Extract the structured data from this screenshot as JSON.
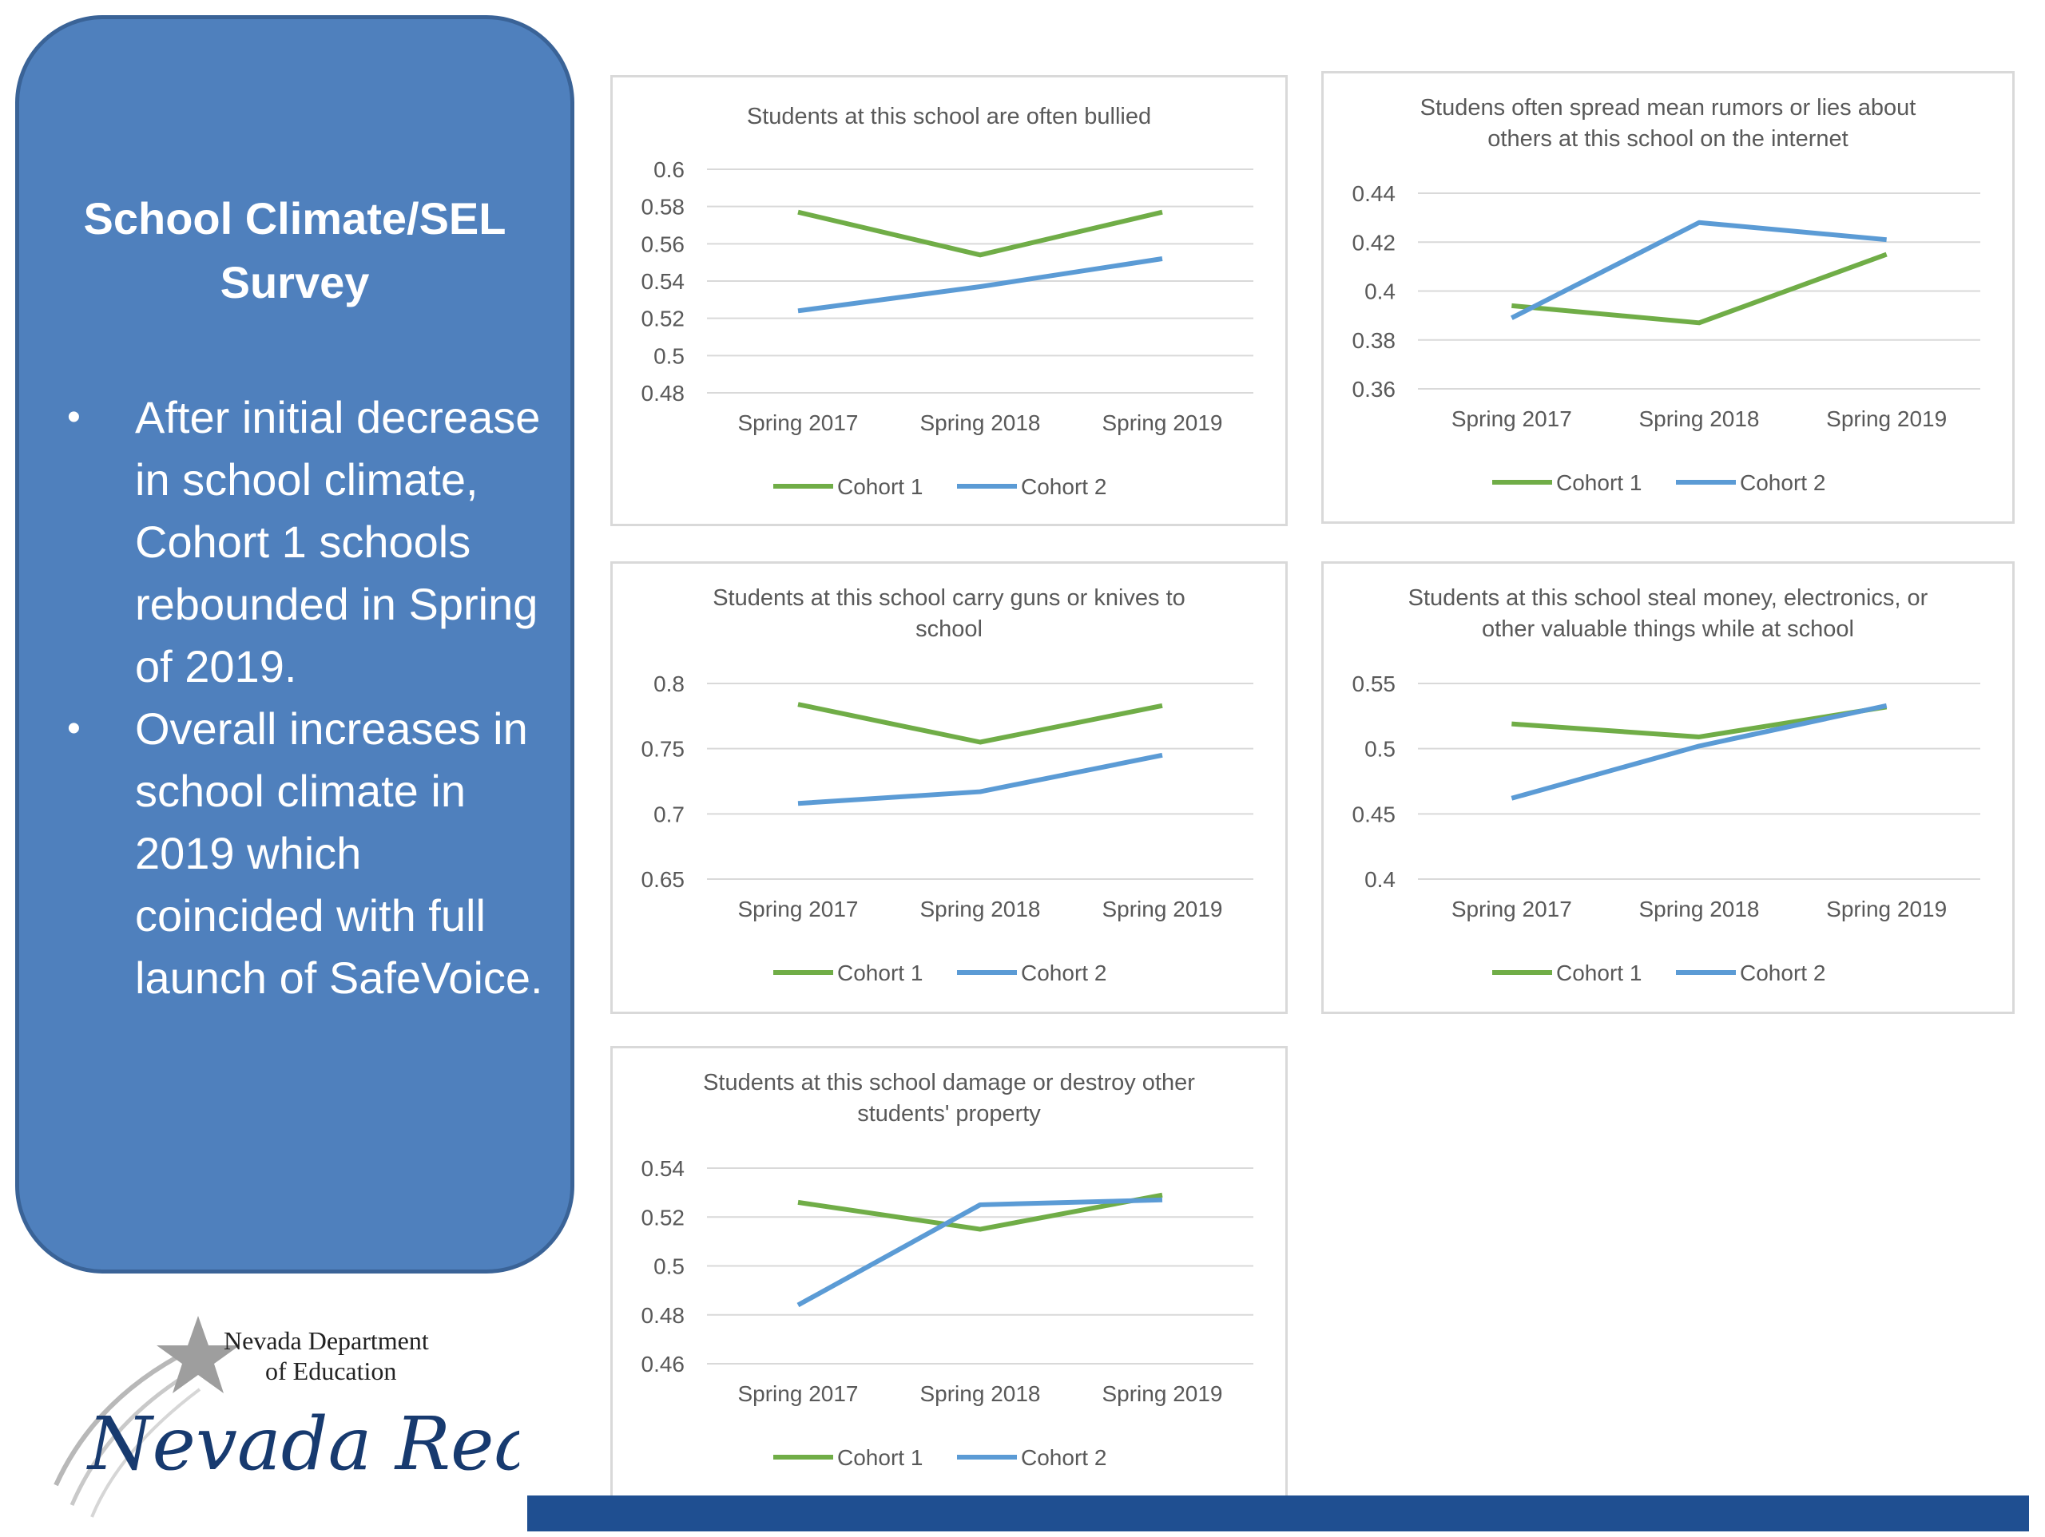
{
  "panel": {
    "title": "School Climate/SEL Survey",
    "bullets": [
      "After initial decrease in school climate, Cohort 1 schools rebounded in Spring of 2019.",
      "Overall increases in school climate in 2019 which coincided with full launch of SafeVoice."
    ]
  },
  "logo": {
    "org_line1": "Nevada Department",
    "org_line2": "of Education",
    "script": "Nevada Ready!"
  },
  "colors": {
    "panel": "#4f80bd",
    "cohort1": "#70ad47",
    "cohort2": "#5b9bd5",
    "footer_bar": "#1f4f91"
  },
  "chart_data": [
    {
      "type": "line",
      "title": "Students at this school are often bullied",
      "categories": [
        "Spring 2017",
        "Spring 2018",
        "Spring 2019"
      ],
      "ylim": [
        0.48,
        0.6
      ],
      "yticks": [
        "0.6",
        "0.58",
        "0.56",
        "0.54",
        "0.52",
        "0.5",
        "0.48"
      ],
      "grid": true,
      "legend": "bottom",
      "series": [
        {
          "name": "Cohort 1",
          "values": [
            0.577,
            0.554,
            0.577
          ]
        },
        {
          "name": "Cohort 2",
          "values": [
            0.524,
            0.537,
            0.552
          ]
        }
      ]
    },
    {
      "type": "line",
      "title": "Studens often spread mean rumors or lies about others at this school on the internet",
      "categories": [
        "Spring 2017",
        "Spring 2018",
        "Spring 2019"
      ],
      "ylim": [
        0.36,
        0.44
      ],
      "yticks": [
        "0.44",
        "0.42",
        "0.4",
        "0.38",
        "0.36"
      ],
      "grid": true,
      "legend": "bottom",
      "series": [
        {
          "name": "Cohort 1",
          "values": [
            0.394,
            0.387,
            0.415
          ]
        },
        {
          "name": "Cohort 2",
          "values": [
            0.389,
            0.428,
            0.421
          ]
        }
      ]
    },
    {
      "type": "line",
      "title": "Students at this school carry guns or knives to school",
      "categories": [
        "Spring 2017",
        "Spring 2018",
        "Spring 2019"
      ],
      "ylim": [
        0.65,
        0.8
      ],
      "yticks": [
        "0.8",
        "0.75",
        "0.7",
        "0.65"
      ],
      "grid": true,
      "legend": "bottom",
      "series": [
        {
          "name": "Cohort 1",
          "values": [
            0.784,
            0.755,
            0.783
          ]
        },
        {
          "name": "Cohort 2",
          "values": [
            0.708,
            0.717,
            0.745
          ]
        }
      ]
    },
    {
      "type": "line",
      "title": "Students at this school steal money, electronics, or other valuable things while at school",
      "categories": [
        "Spring 2017",
        "Spring 2018",
        "Spring 2019"
      ],
      "ylim": [
        0.4,
        0.55
      ],
      "yticks": [
        "0.55",
        "0.5",
        "0.45",
        "0.4"
      ],
      "grid": true,
      "legend": "bottom",
      "series": [
        {
          "name": "Cohort 1",
          "values": [
            0.519,
            0.509,
            0.532
          ]
        },
        {
          "name": "Cohort 2",
          "values": [
            0.462,
            0.502,
            0.533
          ]
        }
      ]
    },
    {
      "type": "line",
      "title": "Students at this school damage or destroy other students' property",
      "categories": [
        "Spring 2017",
        "Spring 2018",
        "Spring 2019"
      ],
      "ylim": [
        0.46,
        0.54
      ],
      "yticks": [
        "0.54",
        "0.52",
        "0.5",
        "0.48",
        "0.46"
      ],
      "grid": true,
      "legend": "bottom",
      "series": [
        {
          "name": "Cohort 1",
          "values": [
            0.526,
            0.515,
            0.529
          ]
        },
        {
          "name": "Cohort 2",
          "values": [
            0.484,
            0.525,
            0.527
          ]
        }
      ]
    }
  ]
}
